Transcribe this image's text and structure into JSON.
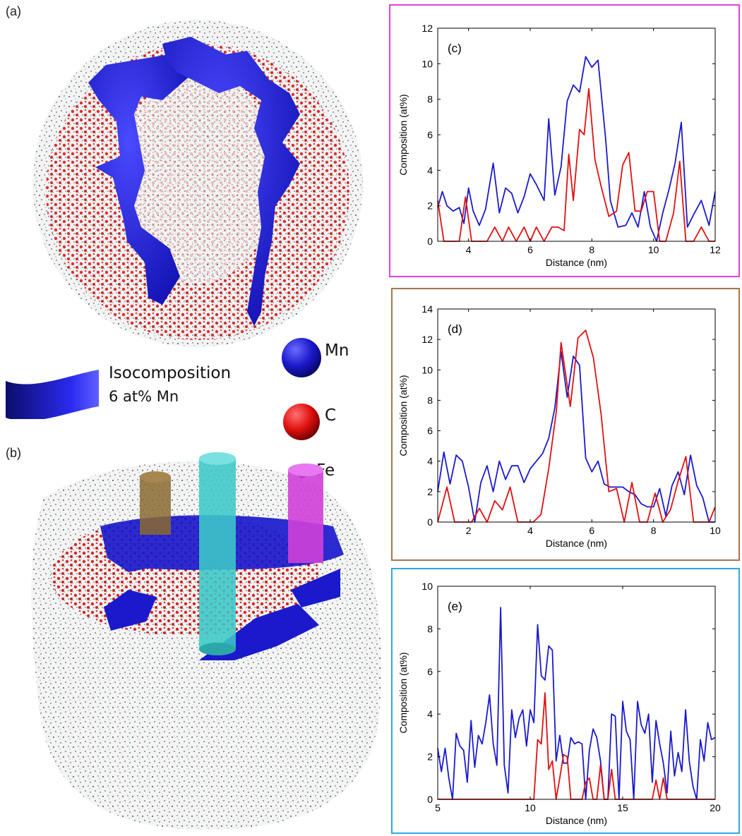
{
  "panels": {
    "a": "(a)",
    "b": "(b)"
  },
  "legend": {
    "iso_line1": "Isocomposition",
    "iso_line2": "6 at% Mn",
    "mn": "Mn",
    "c": "C",
    "fe": "Fe"
  },
  "colors": {
    "mn_blue": "#1a1acc",
    "c_red": "#e01010",
    "frame_c": "#e040e0",
    "frame_d": "#a07850",
    "frame_e": "#30a8e0",
    "cyl_brown": "#8a6a30",
    "cyl_cyan": "#3cc8c8",
    "cyl_magenta": "#d040d8"
  },
  "chart_data": [
    {
      "id": "c",
      "type": "line",
      "panel_label": "(c)",
      "xlabel": "Distance (nm)",
      "ylabel": "Composition (at%)",
      "xlim": [
        3,
        12
      ],
      "ylim": [
        0,
        12
      ],
      "xticks": [
        4,
        6,
        8,
        10,
        12
      ],
      "yticks": [
        0,
        2,
        4,
        6,
        8,
        10,
        12
      ],
      "series": [
        {
          "color": "#1a1acc",
          "x": [
            3,
            3.15,
            3.3,
            3.5,
            3.7,
            3.85,
            4.0,
            4.15,
            4.35,
            4.55,
            4.8,
            5.0,
            5.2,
            5.4,
            5.6,
            5.8,
            6.0,
            6.2,
            6.45,
            6.6,
            6.8,
            7.0,
            7.2,
            7.4,
            7.6,
            7.8,
            8.0,
            8.2,
            8.45,
            8.6,
            8.85,
            9.1,
            9.3,
            9.5,
            9.7,
            9.9,
            10.1,
            10.3,
            10.5,
            10.7,
            10.9,
            11.1,
            11.3,
            11.55,
            11.8,
            12
          ],
          "values": [
            1.9,
            2.8,
            2.0,
            1.7,
            1.9,
            1.0,
            3.0,
            1.7,
            0.9,
            1.8,
            4.4,
            1.6,
            3.0,
            2.7,
            1.6,
            2.5,
            3.8,
            3.2,
            2.3,
            6.9,
            2.6,
            4.2,
            7.9,
            8.8,
            8.4,
            10.4,
            9.8,
            10.2,
            5.7,
            2.3,
            0.8,
            0.9,
            1.6,
            0.8,
            2.8,
            0.8,
            0.0,
            1.6,
            2.9,
            4.4,
            6.7,
            0.8,
            1.5,
            2.3,
            0.9,
            2.8
          ]
        },
        {
          "color": "#e01010",
          "x": [
            3,
            3.2,
            3.5,
            3.7,
            3.9,
            4.1,
            4.35,
            4.6,
            4.85,
            5.1,
            5.3,
            5.55,
            5.8,
            6.0,
            6.2,
            6.45,
            6.7,
            6.9,
            7.1,
            7.25,
            7.4,
            7.6,
            7.75,
            7.9,
            8.1,
            8.3,
            8.55,
            8.8,
            9.0,
            9.2,
            9.4,
            9.6,
            9.8,
            10.0,
            10.2,
            10.4,
            10.65,
            10.85,
            11.05,
            11.3,
            11.55,
            11.8,
            12
          ],
          "values": [
            2.3,
            0.0,
            0.0,
            0.0,
            2.5,
            0.0,
            0.0,
            0.0,
            0.8,
            0.0,
            0.8,
            0.0,
            0.8,
            0.0,
            0.8,
            0.0,
            0.8,
            0.8,
            0.6,
            4.9,
            2.3,
            6.3,
            6.0,
            8.6,
            4.6,
            3.1,
            1.4,
            1.7,
            4.3,
            5.0,
            1.7,
            1.7,
            2.8,
            2.8,
            0.0,
            0.0,
            1.6,
            4.5,
            0.0,
            0.0,
            0.8,
            0.0,
            0.0
          ]
        }
      ]
    },
    {
      "id": "d",
      "type": "line",
      "panel_label": "(d)",
      "xlabel": "Distance (nm)",
      "ylabel": "Composition (at%)",
      "xlim": [
        1,
        10
      ],
      "ylim": [
        0,
        14
      ],
      "xticks": [
        2,
        4,
        6,
        8,
        10
      ],
      "yticks": [
        0,
        2,
        4,
        6,
        8,
        10,
        12,
        14
      ],
      "series": [
        {
          "color": "#1a1acc",
          "x": [
            1.0,
            1.2,
            1.4,
            1.6,
            1.8,
            2.0,
            2.2,
            2.4,
            2.6,
            2.8,
            3.0,
            3.2,
            3.4,
            3.6,
            3.8,
            4.0,
            4.2,
            4.4,
            4.6,
            4.8,
            5.0,
            5.2,
            5.4,
            5.6,
            5.8,
            6.0,
            6.2,
            6.4,
            6.6,
            6.8,
            7.0,
            7.2,
            7.4,
            7.6,
            7.8,
            8.0,
            8.2,
            8.4,
            8.6,
            8.8,
            9.0,
            9.2,
            9.4,
            9.6,
            9.8,
            10.0
          ],
          "values": [
            2.0,
            4.6,
            2.5,
            4.4,
            4.0,
            2.3,
            0.0,
            2.6,
            3.7,
            2.0,
            4.0,
            2.8,
            3.7,
            3.7,
            2.6,
            3.5,
            4.0,
            4.5,
            5.5,
            7.5,
            11.2,
            8.2,
            10.9,
            10.3,
            4.2,
            3.3,
            4.0,
            2.5,
            2.3,
            2.3,
            2.3,
            2.0,
            1.8,
            1.2,
            1.0,
            1.0,
            2.2,
            0.4,
            2.4,
            3.3,
            1.8,
            4.4,
            2.4,
            1.6,
            0.0,
            0.0
          ]
        },
        {
          "color": "#e01010",
          "x": [
            1.0,
            1.3,
            1.55,
            1.8,
            2.1,
            2.35,
            2.6,
            2.85,
            3.1,
            3.35,
            3.6,
            3.85,
            4.1,
            4.35,
            4.6,
            4.85,
            5.0,
            5.3,
            5.55,
            5.8,
            6.05,
            6.3,
            6.55,
            6.8,
            7.05,
            7.3,
            7.55,
            7.8,
            8.05,
            8.3,
            8.55,
            8.8,
            9.05,
            9.3,
            9.55,
            9.8,
            10.0
          ],
          "values": [
            0.0,
            2.3,
            0.0,
            0.0,
            0.0,
            0.9,
            0.0,
            1.4,
            0.8,
            2.3,
            0.0,
            0.0,
            0.0,
            0.5,
            3.5,
            7.3,
            11.8,
            7.6,
            12.1,
            12.6,
            10.8,
            7.1,
            2.0,
            2.2,
            0.0,
            2.6,
            0.0,
            0.0,
            1.9,
            0.0,
            0.8,
            2.7,
            4.3,
            0.0,
            0.0,
            0.0,
            1.0
          ]
        }
      ]
    },
    {
      "id": "e",
      "type": "line",
      "panel_label": "(e)",
      "xlabel": "Distance (nm)",
      "ylabel": "Composition (at%)",
      "xlim": [
        5,
        20
      ],
      "ylim": [
        0,
        10
      ],
      "xticks": [
        5,
        10,
        15,
        20
      ],
      "yticks": [
        0,
        2,
        4,
        6,
        8,
        10
      ],
      "series": [
        {
          "color": "#1a1acc",
          "x": [
            5.0,
            5.2,
            5.4,
            5.6,
            5.8,
            6.0,
            6.2,
            6.4,
            6.6,
            6.8,
            7.0,
            7.2,
            7.4,
            7.6,
            7.8,
            8.0,
            8.2,
            8.4,
            8.6,
            8.8,
            9.0,
            9.2,
            9.4,
            9.6,
            9.8,
            10.0,
            10.2,
            10.4,
            10.6,
            10.8,
            11.0,
            11.2,
            11.4,
            11.6,
            11.8,
            12.0,
            12.2,
            12.4,
            12.6,
            12.8,
            13.0,
            13.2,
            13.4,
            13.6,
            13.8,
            14.0,
            14.2,
            14.4,
            14.6,
            14.8,
            15.0,
            15.2,
            15.4,
            15.6,
            15.8,
            16.0,
            16.2,
            16.4,
            16.6,
            16.8,
            17.0,
            17.2,
            17.4,
            17.6,
            17.8,
            18.0,
            18.2,
            18.4,
            18.6,
            18.8,
            19.0,
            19.2,
            19.4,
            19.6,
            19.8,
            20.0
          ],
          "values": [
            2.4,
            1.3,
            2.4,
            1.0,
            0.0,
            3.1,
            2.5,
            2.3,
            0.8,
            3.7,
            1.5,
            3.0,
            2.6,
            3.6,
            4.9,
            2.6,
            1.6,
            9.0,
            1.6,
            0.3,
            4.2,
            2.9,
            3.8,
            4.2,
            2.5,
            4.2,
            3.6,
            8.2,
            5.8,
            5.6,
            7.2,
            7.0,
            1.8,
            3.0,
            1.7,
            1.7,
            2.9,
            2.6,
            2.7,
            2.6,
            0.0,
            2.3,
            3.3,
            2.9,
            1.8,
            0.0,
            0.0,
            4.0,
            3.9,
            0.0,
            4.6,
            3.2,
            2.8,
            0.0,
            4.6,
            3.5,
            3.1,
            4.0,
            0.8,
            3.7,
            2.6,
            1.7,
            0.3,
            3.2,
            1.1,
            2.2,
            1.3,
            4.2,
            1.8,
            0.6,
            0.0,
            2.8,
            1.8,
            3.6,
            2.8,
            2.9
          ]
        },
        {
          "color": "#e01010",
          "x": [
            5.0,
            6.0,
            7.0,
            8.0,
            9.0,
            10.0,
            10.2,
            10.4,
            10.6,
            10.8,
            11.0,
            11.2,
            11.4,
            11.6,
            11.8,
            12.0,
            12.2,
            12.4,
            12.6,
            12.8,
            13.0,
            13.2,
            13.4,
            13.6,
            13.8,
            14.0,
            14.2,
            14.4,
            14.6,
            14.8,
            15.0,
            16.0,
            16.6,
            16.8,
            17.0,
            17.2,
            17.4,
            17.6,
            18.0,
            19.0,
            20.0
          ],
          "values": [
            0.0,
            0.0,
            0.0,
            0.0,
            0.0,
            0.0,
            0.0,
            2.8,
            2.6,
            5.0,
            1.4,
            1.8,
            0.0,
            1.0,
            2.1,
            2.0,
            0.0,
            0.0,
            0.0,
            0.0,
            0.8,
            1.0,
            0.0,
            0.0,
            1.6,
            0.0,
            0.0,
            1.4,
            0.0,
            0.0,
            0.0,
            0.0,
            0.0,
            0.9,
            0.0,
            1.0,
            0.0,
            0.0,
            0.0,
            0.0,
            0.0
          ]
        }
      ]
    }
  ]
}
